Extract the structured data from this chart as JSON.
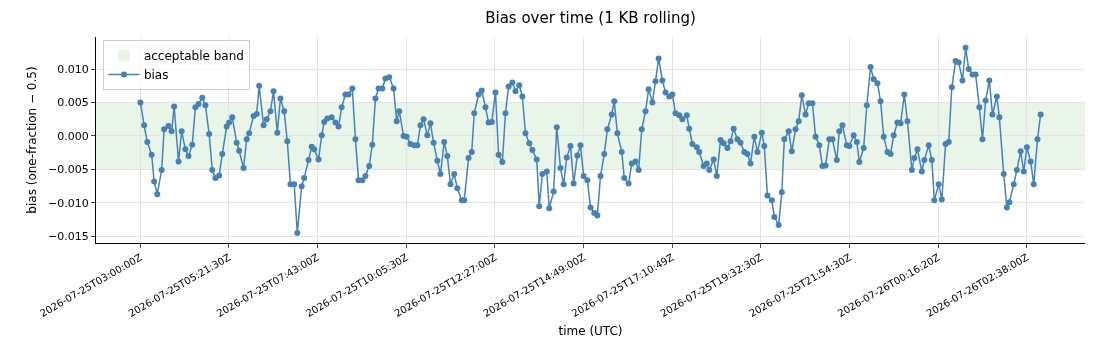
{
  "chart_data": {
    "type": "line",
    "title": "Bias over time (1 KB rolling)",
    "xlabel": "time (UTC)",
    "ylabel": "bias (one-fraction − 0.5)",
    "xlim": [
      "2026-07-25T01:49",
      "2026-07-26T04:11"
    ],
    "xticks": [
      {
        "value": "2026-07-25T03:00:00",
        "label": "2026-07-25T03:00:00Z"
      },
      {
        "value": "2026-07-25T05:21:30",
        "label": "2026-07-25T05:21:30Z"
      },
      {
        "value": "2026-07-25T07:43:00",
        "label": "2026-07-25T07:43:00Z"
      },
      {
        "value": "2026-07-25T10:05:30",
        "label": "2026-07-25T10:05:30Z"
      },
      {
        "value": "2026-07-25T12:27:00",
        "label": "2026-07-25T12:27:00Z"
      },
      {
        "value": "2026-07-25T14:49:00",
        "label": "2026-07-25T14:49:00Z"
      },
      {
        "value": "2026-07-25T17:10:49",
        "label": "2026-07-25T17:10:49Z"
      },
      {
        "value": "2026-07-25T19:32:30",
        "label": "2026-07-25T19:32:30Z"
      },
      {
        "value": "2026-07-25T21:54:30",
        "label": "2026-07-25T21:54:30Z"
      },
      {
        "value": "2026-07-26T00:16:20",
        "label": "2026-07-26T00:16:20Z"
      },
      {
        "value": "2026-07-26T02:38:00",
        "label": "2026-07-26T02:38:00Z"
      }
    ],
    "ylim": [
      -0.016,
      0.0148
    ],
    "yticks": [
      {
        "value": -0.015,
        "label": "−0.015"
      },
      {
        "value": -0.01,
        "label": "−0.010"
      },
      {
        "value": -0.005,
        "label": "−0.005"
      },
      {
        "value": 0,
        "label": "0.000"
      },
      {
        "value": 0.005,
        "label": "0.005"
      },
      {
        "value": 0.01,
        "label": "0.010"
      }
    ],
    "bands": [
      {
        "axis": "y",
        "from": -0.005,
        "to": 0.005,
        "label": "acceptable band",
        "color": "#eaf5ea"
      }
    ],
    "grid": true,
    "legend": "top left",
    "marker": "circle",
    "line_style": "solid",
    "series": [
      {
        "name": "bias",
        "color": "#4682b4",
        "x": [
          "2026-07-25T03:00",
          "2026-07-25T03:06",
          "2026-07-25T03:11",
          "2026-07-25T03:18",
          "2026-07-25T03:22",
          "2026-07-25T03:27",
          "2026-07-25T03:34",
          "2026-07-25T03:38",
          "2026-07-25T03:45",
          "2026-07-25T03:50",
          "2026-07-25T03:54",
          "2026-07-25T04:01",
          "2026-07-25T04:06",
          "2026-07-25T04:12",
          "2026-07-25T04:17",
          "2026-07-25T04:23",
          "2026-07-25T04:28",
          "2026-07-25T04:33",
          "2026-07-25T04:39",
          "2026-07-25T04:44",
          "2026-07-25T04:50",
          "2026-07-25T04:55",
          "2026-07-25T05:00",
          "2026-07-25T05:06",
          "2026-07-25T05:11",
          "2026-07-25T05:18",
          "2026-07-25T05:22",
          "2026-07-25T05:27",
          "2026-07-25T05:34",
          "2026-07-25T05:38",
          "2026-07-25T05:45",
          "2026-07-25T05:50",
          "2026-07-25T05:54",
          "2026-07-25T06:01",
          "2026-07-25T06:06",
          "2026-07-25T06:10",
          "2026-07-25T06:17",
          "2026-07-25T06:22",
          "2026-07-25T06:28",
          "2026-07-25T06:33",
          "2026-07-25T06:39",
          "2026-07-25T06:44",
          "2026-07-25T06:50",
          "2026-07-25T06:55",
          "2026-07-25T07:00",
          "2026-07-25T07:06",
          "2026-07-25T07:11",
          "2026-07-25T07:18",
          "2026-07-25T07:22",
          "2026-07-25T07:29",
          "2026-07-25T07:34",
          "2026-07-25T07:38",
          "2026-07-25T07:45",
          "2026-07-25T07:50",
          "2026-07-25T07:54",
          "2026-07-25T07:59",
          "2026-07-25T08:06",
          "2026-07-25T08:12",
          "2026-07-25T08:17",
          "2026-07-25T08:22",
          "2026-07-25T08:28",
          "2026-07-25T08:33",
          "2026-07-25T08:39",
          "2026-07-25T08:44",
          "2026-07-25T08:49",
          "2026-07-25T08:55",
          "2026-07-25T09:00",
          "2026-07-25T09:06",
          "2026-07-25T09:11",
          "2026-07-25T09:16",
          "2026-07-25T09:21",
          "2026-07-25T09:27",
          "2026-07-25T09:32",
          "2026-07-25T09:38",
          "2026-07-25T09:45",
          "2026-07-25T09:50",
          "2026-07-25T09:54",
          "2026-07-25T10:01",
          "2026-07-25T10:06",
          "2026-07-25T10:12",
          "2026-07-25T10:18",
          "2026-07-25T10:23",
          "2026-07-25T10:28",
          "2026-07-25T10:33",
          "2026-07-25T10:39",
          "2026-07-25T10:44",
          "2026-07-25T10:49",
          "2026-07-25T10:55",
          "2026-07-25T11:00",
          "2026-07-25T11:06",
          "2026-07-25T11:11",
          "2026-07-25T11:16",
          "2026-07-25T11:22",
          "2026-07-25T11:27",
          "2026-07-25T11:34",
          "2026-07-25T11:38",
          "2026-07-25T11:45",
          "2026-07-25T11:50",
          "2026-07-25T11:54",
          "2026-07-25T12:01",
          "2026-07-25T12:06",
          "2026-07-25T12:12",
          "2026-07-25T12:17",
          "2026-07-25T12:22",
          "2026-07-25T12:28",
          "2026-07-25T12:33",
          "2026-07-25T12:39",
          "2026-07-25T12:44",
          "2026-07-25T12:49",
          "2026-07-25T12:55",
          "2026-07-25T13:00",
          "2026-07-25T13:06",
          "2026-07-25T13:11",
          "2026-07-25T13:16",
          "2026-07-25T13:22",
          "2026-07-25T13:27",
          "2026-07-25T13:34",
          "2026-07-25T13:38",
          "2026-07-25T13:43",
          "2026-07-25T13:50",
          "2026-07-25T13:54",
          "2026-07-25T14:01",
          "2026-07-25T14:06",
          "2026-07-25T14:12",
          "2026-07-25T14:17",
          "2026-07-25T14:22",
          "2026-07-25T14:28",
          "2026-07-25T14:33",
          "2026-07-25T14:39",
          "2026-07-25T14:44",
          "2026-07-25T14:49",
          "2026-07-25T14:55",
          "2026-07-25T15:00",
          "2026-07-25T15:06",
          "2026-07-25T15:11",
          "2026-07-25T15:16",
          "2026-07-25T15:22",
          "2026-07-25T15:27",
          "2026-07-25T15:34",
          "2026-07-25T15:38",
          "2026-07-25T15:43",
          "2026-07-25T15:50",
          "2026-07-25T15:54",
          "2026-07-25T16:01",
          "2026-07-25T16:06",
          "2026-07-25T16:12",
          "2026-07-25T16:17",
          "2026-07-25T16:22",
          "2026-07-25T16:28",
          "2026-07-25T16:33",
          "2026-07-25T16:39",
          "2026-07-25T16:44",
          "2026-07-25T16:49",
          "2026-07-25T16:55",
          "2026-07-25T17:00",
          "2026-07-25T17:06",
          "2026-07-25T17:11",
          "2026-07-25T17:16",
          "2026-07-25T17:22",
          "2026-07-25T17:27",
          "2026-07-25T17:34",
          "2026-07-25T17:38",
          "2026-07-25T17:43",
          "2026-07-25T17:50",
          "2026-07-25T17:54",
          "2026-07-25T18:01",
          "2026-07-25T18:06",
          "2026-07-25T18:10",
          "2026-07-25T18:17",
          "2026-07-25T18:22",
          "2026-07-25T18:28",
          "2026-07-25T18:33",
          "2026-07-25T18:39",
          "2026-07-25T18:44",
          "2026-07-25T18:49",
          "2026-07-25T18:55",
          "2026-07-25T19:00",
          "2026-07-25T19:06",
          "2026-07-25T19:11",
          "2026-07-25T19:16",
          "2026-07-25T19:22",
          "2026-07-25T19:27",
          "2026-07-25T19:34",
          "2026-07-25T19:38",
          "2026-07-25T19:43",
          "2026-07-25T19:50",
          "2026-07-25T19:54",
          "2026-07-25T20:01",
          "2026-07-25T20:06",
          "2026-07-25T20:10",
          "2026-07-25T20:17",
          "2026-07-25T20:22",
          "2026-07-25T20:28",
          "2026-07-25T20:33",
          "2026-07-25T20:38",
          "2026-07-25T20:44",
          "2026-07-25T20:49",
          "2026-07-25T20:55",
          "2026-07-25T21:00",
          "2026-07-25T21:06",
          "2026-07-25T21:11",
          "2026-07-25T21:16",
          "2026-07-25T21:22",
          "2026-07-25T21:27",
          "2026-07-25T21:34",
          "2026-07-25T21:38",
          "2026-07-25T21:43",
          "2026-07-25T21:50",
          "2026-07-25T21:54",
          "2026-07-25T22:01",
          "2026-07-25T22:06",
          "2026-07-25T22:10",
          "2026-07-25T22:17",
          "2026-07-25T22:22",
          "2026-07-25T22:28",
          "2026-07-25T22:33",
          "2026-07-25T22:39",
          "2026-07-25T22:44",
          "2026-07-25T22:49",
          "2026-07-25T22:55",
          "2026-07-25T23:00",
          "2026-07-25T23:05",
          "2026-07-25T23:11",
          "2026-07-25T23:16",
          "2026-07-25T23:22",
          "2026-07-25T23:27",
          "2026-07-25T23:34",
          "2026-07-25T23:38",
          "2026-07-25T23:43",
          "2026-07-25T23:50",
          "2026-07-25T23:54",
          "2026-07-26T00:01",
          "2026-07-26T00:06",
          "2026-07-26T00:10",
          "2026-07-26T00:17",
          "2026-07-26T00:22",
          "2026-07-26T00:28",
          "2026-07-26T00:33",
          "2026-07-26T00:38",
          "2026-07-26T00:44",
          "2026-07-26T00:49",
          "2026-07-26T00:55",
          "2026-07-26T01:00",
          "2026-07-26T01:05",
          "2026-07-26T01:11",
          "2026-07-26T01:16",
          "2026-07-26T01:22",
          "2026-07-26T01:27",
          "2026-07-26T01:32",
          "2026-07-26T01:38",
          "2026-07-26T01:43",
          "2026-07-26T01:50",
          "2026-07-26T01:54",
          "2026-07-26T02:01",
          "2026-07-26T02:06",
          "2026-07-26T02:10",
          "2026-07-26T02:17",
          "2026-07-26T02:22",
          "2026-07-26T02:28",
          "2026-07-26T02:33",
          "2026-07-26T02:38",
          "2026-07-26T02:44",
          "2026-07-26T02:49",
          "2026-07-26T02:55",
          "2026-07-26T03:00"
        ],
        "values": [
          0.005,
          0.0016,
          -0.0009,
          -0.0028,
          -0.0068,
          -0.0087,
          -0.0051,
          0.001,
          0.0015,
          0.0007,
          0.0044,
          -0.0038,
          0.0007,
          -0.002,
          -0.003,
          -0.0013,
          0.0043,
          0.0048,
          0.0057,
          0.0046,
          0.0003,
          -0.0051,
          -0.0063,
          -0.0059,
          -0.0027,
          0.0014,
          0.002,
          0.0028,
          -0.001,
          -0.0022,
          -0.0048,
          -0.0005,
          0.0004,
          0.003,
          0.0033,
          0.0075,
          0.0016,
          0.0025,
          0.0037,
          0.0067,
          0.0005,
          0.0056,
          0.0037,
          -0.0008,
          -0.0072,
          -0.0072,
          -0.0145,
          -0.0075,
          -0.0063,
          -0.0036,
          -0.0016,
          -0.002,
          -0.0035,
          0.0001,
          0.0021,
          0.0026,
          0.0028,
          0.002,
          0.0014,
          0.0043,
          0.0062,
          0.0062,
          0.0071,
          -0.0005,
          -0.0066,
          -0.0066,
          -0.006,
          -0.0045,
          -0.0013,
          0.0056,
          0.0071,
          0.0071,
          0.0086,
          0.0088,
          0.0071,
          0.0022,
          0.0037,
          0,
          -0.0001,
          -0.0012,
          -0.0014,
          -0.0014,
          0.0016,
          0.0025,
          0.0001,
          0.0019,
          -0.001,
          -0.0037,
          -0.0057,
          -0.0009,
          -0.003,
          -0.0072,
          -0.0057,
          -0.0078,
          -0.0096,
          -0.0096,
          -0.0033,
          -0.0024,
          0.0034,
          0.0062,
          0.0068,
          0.0043,
          0.002,
          0.0021,
          0.0065,
          -0.0028,
          -0.0039,
          0.0034,
          0.0074,
          0.008,
          0.0067,
          0.0076,
          0.0059,
          0.0004,
          -0.0011,
          -0.0021,
          -0.0035,
          -0.0105,
          -0.0057,
          -0.0053,
          -0.0108,
          -0.0083,
          0.0013,
          -0.0048,
          -0.0072,
          -0.0032,
          -0.0015,
          -0.0071,
          -0.0029,
          -0.0014,
          -0.006,
          -0.0066,
          -0.0107,
          -0.0115,
          -0.0119,
          -0.006,
          -0.0027,
          0.001,
          0.0032,
          0.0052,
          0.0004,
          -0.0024,
          -0.0063,
          -0.0071,
          -0.0041,
          -0.0038,
          -0.0051,
          0.001,
          0.0037,
          0.007,
          0.005,
          0.0082,
          0.0116,
          0.0083,
          0.0065,
          0.0059,
          0.0062,
          0.0034,
          0.0031,
          0.0025,
          0.0031,
          0.0011,
          -0.0012,
          -0.0017,
          -0.0024,
          -0.0045,
          -0.0041,
          -0.0051,
          -0.0035,
          -0.006,
          -0.0006,
          -0.0011,
          -0.0018,
          -0.0008,
          0.0011,
          -0.0005,
          -0.001,
          -0.0024,
          -0.0027,
          -0.0041,
          -0.0001,
          -0.0024,
          0.0005,
          -0.0015,
          -0.0089,
          -0.0096,
          -0.0121,
          -0.0133,
          -0.0084,
          -0.0005,
          0.0007,
          -0.0023,
          0.001,
          0.0022,
          0.0061,
          0.0032,
          0.0049,
          0.0049,
          -0.0001,
          -0.0014,
          -0.0045,
          -0.0044,
          -0.0005,
          -0.0005,
          -0.0036,
          0.0007,
          0.0016,
          -0.0014,
          -0.0015,
          0.0001,
          -0.0009,
          -0.0039,
          -0.0018,
          0.0046,
          0.0103,
          0.0085,
          0.0079,
          0.0052,
          -0.0001,
          -0.0024,
          -0.0027,
          0.0001,
          0.002,
          0.0019,
          0.0062,
          0.0022,
          -0.0051,
          -0.0033,
          -0.002,
          -0.0053,
          -0.0036,
          -0.0014,
          -0.0036,
          -0.0096,
          -0.0072,
          -0.0095,
          -0.0012,
          -0.0009,
          0.0073,
          0.0112,
          0.011,
          0.0083,
          0.0132,
          0.01,
          0.0092,
          0.0092,
          0.0043,
          -0.0005,
          0.0053,
          0.0083,
          0.0032,
          0.0059,
          0.0028,
          -0.0057,
          -0.0107,
          -0.0099,
          -0.0072,
          -0.0051,
          -0.0023,
          -0.0053,
          -0.0017,
          -0.0038,
          -0.0072,
          -0.0005,
          0.0032
        ]
      }
    ]
  }
}
